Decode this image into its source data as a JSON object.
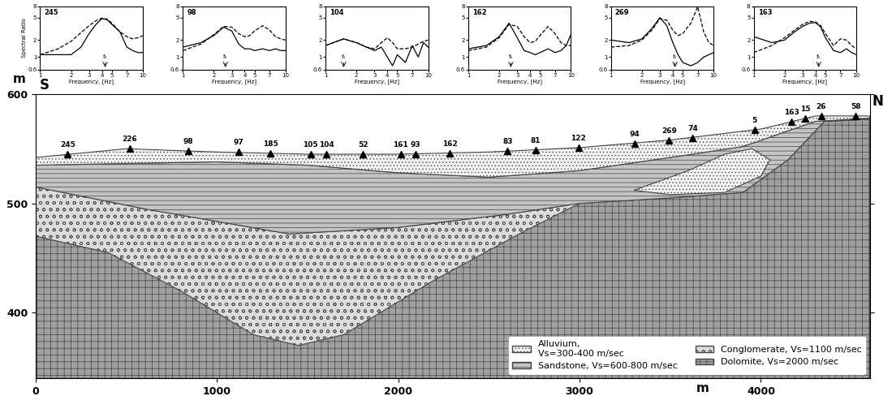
{
  "chart_data": [
    {
      "type": "line",
      "title": "245",
      "xlabel": "Frequency, [Hz]",
      "ylabel": "Spectral Ratio",
      "log": true,
      "x": [
        1,
        1.5,
        2,
        2.5,
        3,
        3.5,
        4,
        4.5,
        5,
        6,
        7,
        8,
        9,
        10
      ],
      "xlim": [
        1,
        10
      ],
      "ylim": [
        0.6,
        8
      ],
      "xticks": [
        1,
        2,
        3,
        4,
        5,
        7,
        10
      ],
      "yticks": [
        0.6,
        1,
        2,
        5,
        8
      ],
      "series": [
        {
          "color": "#000000",
          "line_style": "solid",
          "values": [
            1.1,
            1.1,
            1.1,
            1.5,
            2.6,
            3.8,
            4.8,
            4.6,
            3.8,
            2.8,
            1.5,
            1.3,
            1.2,
            1.2
          ]
        },
        {
          "color": "#000000",
          "line_style": "dashed",
          "values": [
            1.1,
            1.4,
            1.9,
            2.7,
            3.6,
            4.4,
            4.9,
            4.7,
            4.0,
            2.8,
            2.3,
            2.1,
            2.2,
            2.4
          ]
        }
      ],
      "annotations": [
        {
          "text": "f₀",
          "x": 4.3
        }
      ]
    },
    {
      "type": "line",
      "title": "98",
      "xlabel": "Frequency, [Hz]",
      "log": true,
      "x": [
        1,
        1.5,
        2,
        2.5,
        3,
        3.5,
        4,
        4.5,
        5,
        6,
        7,
        8,
        9,
        10
      ],
      "xlim": [
        1,
        10
      ],
      "ylim": [
        0.6,
        8
      ],
      "xticks": [
        1,
        2,
        3,
        4,
        5,
        7,
        10
      ],
      "yticks": [
        0.6,
        1,
        2,
        5,
        8
      ],
      "series": [
        {
          "color": "#000000",
          "line_style": "solid",
          "values": [
            1.5,
            1.8,
            2.4,
            3.4,
            2.9,
            1.7,
            1.4,
            1.4,
            1.3,
            1.4,
            1.3,
            1.4,
            1.3,
            1.3
          ]
        },
        {
          "color": "#000000",
          "line_style": "dashed",
          "values": [
            1.3,
            1.7,
            2.5,
            3.5,
            3.4,
            2.6,
            2.3,
            2.4,
            2.9,
            3.6,
            3.0,
            2.3,
            2.1,
            2.0
          ]
        }
      ],
      "annotations": [
        {
          "text": "f₀",
          "x": 2.6
        }
      ]
    },
    {
      "type": "line",
      "title": "104",
      "xlabel": "Frequency, [Hz]",
      "log": true,
      "x": [
        1,
        1.5,
        2,
        2.5,
        3,
        3.5,
        4,
        4.5,
        5,
        6,
        7,
        8,
        9,
        10
      ],
      "xlim": [
        1,
        10
      ],
      "ylim": [
        0.6,
        8
      ],
      "xticks": [
        1,
        2,
        3,
        4,
        5,
        7,
        10
      ],
      "yticks": [
        0.6,
        1,
        2,
        5,
        8
      ],
      "series": [
        {
          "color": "#000000",
          "line_style": "solid",
          "values": [
            1.6,
            2.1,
            1.8,
            1.5,
            1.3,
            1.5,
            1.0,
            0.7,
            1.1,
            0.8,
            1.6,
            1.0,
            1.8,
            1.5
          ]
        },
        {
          "color": "#000000",
          "line_style": "dashed",
          "values": [
            1.6,
            2.1,
            1.8,
            1.5,
            1.4,
            1.8,
            2.2,
            1.8,
            1.4,
            1.4,
            1.5,
            1.7,
            1.9,
            2.0
          ]
        }
      ],
      "annotations": [
        {
          "text": "f₀",
          "x": 1.5
        }
      ]
    },
    {
      "type": "line",
      "title": "162",
      "xlabel": "Frequency, [Hz]",
      "log": true,
      "x": [
        1,
        1.5,
        2,
        2.5,
        3,
        3.5,
        4,
        4.5,
        5,
        6,
        7,
        8,
        9,
        10
      ],
      "xlim": [
        1,
        10
      ],
      "ylim": [
        0.6,
        8
      ],
      "xticks": [
        1,
        2,
        3,
        4,
        5,
        7,
        10
      ],
      "yticks": [
        0.6,
        1,
        2,
        5,
        8
      ],
      "series": [
        {
          "color": "#000000",
          "line_style": "solid",
          "values": [
            1.4,
            1.6,
            2.3,
            4.0,
            2.2,
            1.3,
            1.2,
            1.1,
            1.2,
            1.4,
            1.2,
            1.3,
            1.6,
            2.5
          ]
        },
        {
          "color": "#000000",
          "line_style": "dashed",
          "values": [
            1.3,
            1.5,
            2.2,
            3.8,
            3.5,
            2.3,
            1.8,
            1.9,
            2.4,
            3.5,
            2.6,
            1.8,
            1.6,
            1.6
          ]
        }
      ],
      "annotations": [
        {
          "text": "f₀",
          "x": 2.6
        }
      ]
    },
    {
      "type": "line",
      "title": "269",
      "xlabel": "Frequency, [Hz]",
      "log": true,
      "x": [
        1,
        1.5,
        2,
        2.5,
        3,
        3.5,
        4,
        4.5,
        5,
        6,
        7,
        8,
        9,
        10
      ],
      "xlim": [
        1,
        10
      ],
      "ylim": [
        0.6,
        8
      ],
      "xticks": [
        1,
        2,
        3,
        4,
        5,
        7,
        10
      ],
      "yticks": [
        0.6,
        1,
        2,
        5,
        8
      ],
      "series": [
        {
          "color": "#000000",
          "line_style": "solid",
          "values": [
            2.0,
            1.8,
            2.1,
            3.2,
            5.0,
            3.6,
            1.8,
            1.1,
            0.8,
            0.7,
            0.8,
            1.0,
            1.1,
            1.2
          ]
        },
        {
          "color": "#000000",
          "line_style": "dashed",
          "values": [
            1.5,
            1.6,
            2.0,
            3.0,
            4.8,
            4.5,
            3.0,
            2.4,
            2.6,
            4.0,
            7.8,
            2.8,
            1.8,
            1.6
          ]
        }
      ],
      "annotations": [
        {
          "text": "f₀",
          "x": 4.2
        }
      ]
    },
    {
      "type": "line",
      "title": "163",
      "xlabel": "Frequency, [Hz]",
      "log": true,
      "x": [
        1,
        1.5,
        2,
        2.5,
        3,
        3.5,
        4,
        4.5,
        5,
        6,
        7,
        8,
        9,
        10
      ],
      "xlim": [
        1,
        10
      ],
      "ylim": [
        0.6,
        8
      ],
      "xticks": [
        1,
        2,
        3,
        4,
        5,
        7,
        10
      ],
      "yticks": [
        0.6,
        1,
        2,
        5,
        8
      ],
      "series": [
        {
          "color": "#000000",
          "line_style": "solid",
          "values": [
            2.3,
            1.8,
            2.0,
            2.8,
            3.5,
            4.0,
            4.1,
            3.4,
            2.2,
            1.3,
            1.2,
            1.4,
            1.2,
            1.1
          ]
        },
        {
          "color": "#000000",
          "line_style": "dashed",
          "values": [
            1.2,
            1.6,
            2.2,
            3.0,
            3.8,
            4.3,
            4.2,
            3.6,
            2.6,
            1.6,
            2.1,
            2.0,
            1.6,
            1.4
          ]
        }
      ],
      "annotations": [
        {
          "text": "f₀",
          "x": 4.3
        }
      ]
    },
    {
      "type": "cross_section",
      "xlabel": "m",
      "ylabel": "m",
      "direction_labels": [
        "S",
        "N"
      ],
      "xlim": [
        0,
        4600
      ],
      "ylim": [
        340,
        600
      ],
      "xticks": [
        0,
        1000,
        2000,
        3000,
        4000
      ],
      "yticks": [
        400,
        500,
        600
      ],
      "legend": "lower right",
      "stations": {
        "labels": [
          "245",
          "226",
          "98",
          "97",
          "185",
          "105",
          "104",
          "52",
          "161",
          "93",
          "162",
          "83",
          "81",
          "122",
          "94",
          "269",
          "74",
          "5",
          "163",
          "15",
          "26",
          "58"
        ],
        "x": [
          177,
          519,
          843,
          1118,
          1295,
          1516,
          1605,
          1805,
          2013,
          2093,
          2284,
          2603,
          2758,
          2993,
          3304,
          3494,
          3623,
          3965,
          4169,
          4244,
          4333,
          4523
        ],
        "y": [
          545,
          550,
          548,
          547,
          546,
          545,
          545,
          545,
          545,
          545,
          546,
          548,
          549,
          551,
          555,
          558,
          560,
          567,
          575,
          578,
          580,
          580
        ]
      },
      "layers": [
        {
          "name": "Alluvium,\nVs=300-400 m/sec",
          "color": "#f2f2f2",
          "polygons": [
            {
              "x": [
                0,
                500,
                1000,
                1500,
                2000,
                2500,
                3000,
                3500,
                4000,
                4300,
                4600,
                4600,
                4300,
                3900,
                3500,
                3000,
                2500,
                2000,
                1500,
                1000,
                0
              ],
              "y": [
                542,
                550,
                547,
                545,
                545,
                547,
                551,
                558,
                568,
                580,
                580,
                578,
                575,
                552,
                542,
                530,
                524,
                528,
                535,
                538,
                535
              ]
            },
            {
              "x": [
                3300,
                3600,
                3800,
                3950,
                4050,
                4000,
                3800,
                3500
              ],
              "y": [
                512,
                530,
                545,
                550,
                540,
                525,
                510,
                508
              ]
            }
          ]
        },
        {
          "name": "Sandstone, Vs=600-800 m/sec",
          "color": "#c4c4c4",
          "polygons": [
            {
              "x": [
                0,
                1000,
                1500,
                2000,
                2500,
                3000,
                3500,
                3900,
                4300,
                4600,
                4600,
                4350,
                4150,
                3900,
                3500,
                3000,
                2600,
                2000,
                1400,
                600,
                0
              ],
              "y": [
                535,
                538,
                535,
                528,
                524,
                530,
                542,
                552,
                575,
                578,
                577,
                575,
                540,
                510,
                505,
                500,
                490,
                478,
                472,
                495,
                515
              ]
            }
          ]
        },
        {
          "name": "Conglomerate, Vs=1100 m/sec",
          "color": "#dcdcdc",
          "polygons": [
            {
              "x": [
                0,
                600,
                1400,
                2000,
                2600,
                3000,
                2700,
                2200,
                1700,
                1450,
                1200,
                800,
                400,
                0
              ],
              "y": [
                515,
                495,
                472,
                478,
                490,
                500,
                475,
                430,
                380,
                370,
                380,
                420,
                455,
                470
              ]
            }
          ]
        },
        {
          "name": "Dolomite, Vs=2000 m/sec",
          "color": "#a0a0a0",
          "polygons": [
            {
              "x": [
                0,
                600,
                1400,
                2000,
                2600,
                3000,
                3500,
                3900,
                4150,
                4350,
                4600,
                4600,
                0
              ],
              "y": [
                515,
                495,
                472,
                478,
                490,
                500,
                505,
                510,
                540,
                575,
                577,
                340,
                340
              ]
            }
          ]
        }
      ]
    }
  ]
}
